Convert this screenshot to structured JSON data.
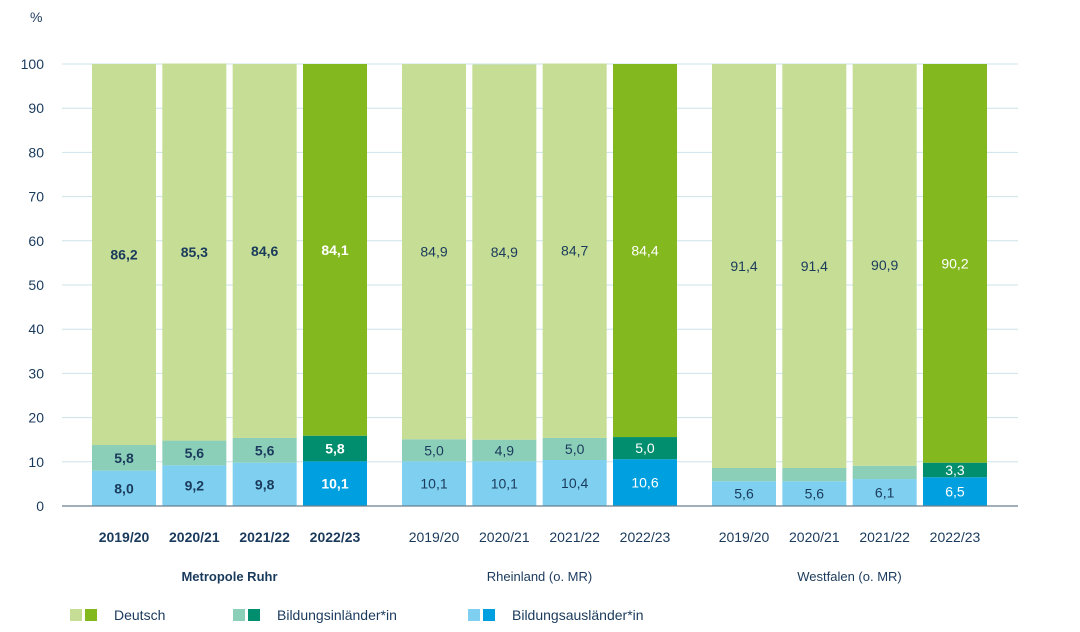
{
  "chart_data": {
    "type": "bar",
    "stacked": true,
    "y_unit": "%",
    "ylim": [
      0,
      100
    ],
    "yticks": [
      0,
      10,
      20,
      30,
      40,
      50,
      60,
      70,
      80,
      90,
      100
    ],
    "grid": true,
    "legend_position": "bottom",
    "groups": [
      {
        "name": "Metropole Ruhr",
        "categories": [
          "2019/20",
          "2020/21",
          "2021/22",
          "2022/23"
        ],
        "series": [
          {
            "name": "Bildungsausländer*in",
            "values": [
              8.0,
              9.2,
              9.8,
              10.1
            ],
            "labels": [
              "8,0",
              "9,2",
              "9,8",
              "10,1"
            ]
          },
          {
            "name": "Bildungsinländer*in",
            "values": [
              5.8,
              5.6,
              5.6,
              5.8
            ],
            "labels": [
              "5,8",
              "5,6",
              "5,6",
              "5,8"
            ]
          },
          {
            "name": "Deutsch",
            "values": [
              86.2,
              85.3,
              84.6,
              84.1
            ],
            "labels": [
              "86,2",
              "85,3",
              "84,6",
              "84,1"
            ]
          }
        ]
      },
      {
        "name": "Rheinland (o. MR)",
        "categories": [
          "2019/20",
          "2020/21",
          "2021/22",
          "2022/23"
        ],
        "series": [
          {
            "name": "Bildungsausländer*in",
            "values": [
              10.1,
              10.1,
              10.4,
              10.6
            ],
            "labels": [
              "10,1",
              "10,1",
              "10,4",
              "10,6"
            ]
          },
          {
            "name": "Bildungsinländer*in",
            "values": [
              5.0,
              4.9,
              5.0,
              5.0
            ],
            "labels": [
              "5,0",
              "4,9",
              "5,0",
              "5,0"
            ]
          },
          {
            "name": "Deutsch",
            "values": [
              84.9,
              84.9,
              84.7,
              84.4
            ],
            "labels": [
              "84,9",
              "84,9",
              "84,7",
              "84,4"
            ]
          }
        ]
      },
      {
        "name": "Westfalen (o. MR)",
        "categories": [
          "2019/20",
          "2020/21",
          "2021/22",
          "2022/23"
        ],
        "series": [
          {
            "name": "Bildungsausländer*in",
            "values": [
              5.6,
              5.6,
              6.1,
              6.5
            ],
            "labels": [
              "5,6",
              "5,6",
              "6,1",
              "6,5"
            ]
          },
          {
            "name": "Bildungsinländer*in",
            "values": [
              3.0,
              3.0,
              3.0,
              3.3
            ],
            "labels": [
              "",
              "",
              "",
              "3,3"
            ]
          },
          {
            "name": "Deutsch",
            "values": [
              91.4,
              91.4,
              90.9,
              90.2
            ],
            "labels": [
              "91,4",
              "91,4",
              "90,9",
              "90,2"
            ]
          }
        ]
      }
    ],
    "legend": [
      {
        "name": "Deutsch",
        "colors": [
          "#c5dd94",
          "#84b81f"
        ]
      },
      {
        "name": "Bildungsinländer*in",
        "colors": [
          "#8ccfb9",
          "#008e6e"
        ]
      },
      {
        "name": "Bildungsausländer*in",
        "colors": [
          "#7fd0f0",
          "#00a0e0"
        ]
      }
    ],
    "colors": {
      "Deutsch": {
        "light": "#c5dd94",
        "dark": "#84b81f"
      },
      "Bildungsinländer*in": {
        "light": "#8ccfb9",
        "dark": "#008e6e"
      },
      "Bildungsausländer*in": {
        "light": "#7fd0f0",
        "dark": "#00a0e0"
      },
      "text": "#1a3a5c",
      "grid": "#cde3ea"
    }
  }
}
